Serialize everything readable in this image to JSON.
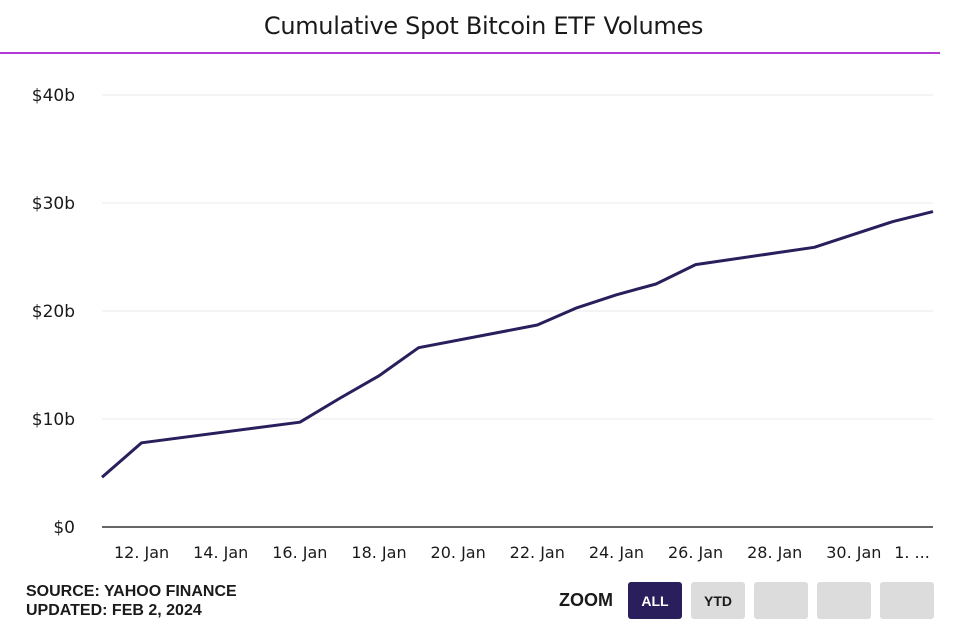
{
  "title": "Cumulative Spot Bitcoin ETF Volumes",
  "footer": {
    "source": "SOURCE: YAHOO FINANCE",
    "updated": "UPDATED: FEB 2, 2024"
  },
  "zoom": {
    "label": "ZOOM",
    "buttons": [
      "ALL",
      "YTD",
      "",
      "",
      ""
    ],
    "active": "ALL"
  },
  "colors": {
    "line": "#2a1e5c",
    "accent": "#b23bd6",
    "grid": "#e8e8e8"
  },
  "chart_data": {
    "type": "line",
    "title": "Cumulative Spot Bitcoin ETF Volumes",
    "xlabel": "",
    "ylabel": "",
    "y_unit": "billion USD",
    "yticks": [
      0,
      10,
      20,
      30,
      40
    ],
    "ytick_labels": [
      "$0",
      "$10b",
      "$20b",
      "$30b",
      "$40b"
    ],
    "ylim": [
      0,
      40
    ],
    "xlim": [
      "2024-01-11",
      "2024-02-01"
    ],
    "xtick_labels": [
      "12. Jan",
      "14. Jan",
      "16. Jan",
      "18. Jan",
      "20. Jan",
      "22. Jan",
      "24. Jan",
      "26. Jan",
      "28. Jan",
      "30. Jan",
      "1. ..."
    ],
    "xtick_dates": [
      "2024-01-12",
      "2024-01-14",
      "2024-01-16",
      "2024-01-18",
      "2024-01-20",
      "2024-01-22",
      "2024-01-24",
      "2024-01-26",
      "2024-01-28",
      "2024-01-30",
      "2024-02-01"
    ],
    "grid": true,
    "legend": "none",
    "series": [
      {
        "x": [
          "2024-01-11",
          "2024-01-12",
          "2024-01-16",
          "2024-01-17",
          "2024-01-18",
          "2024-01-19",
          "2024-01-22",
          "2024-01-23",
          "2024-01-24",
          "2024-01-25",
          "2024-01-26",
          "2024-01-29",
          "2024-01-30",
          "2024-01-31",
          "2024-02-01"
        ],
        "values": [
          4.6,
          7.8,
          9.7,
          11.9,
          14.0,
          16.6,
          18.7,
          20.3,
          21.5,
          22.5,
          24.3,
          25.9,
          27.1,
          28.3,
          29.2
        ]
      }
    ]
  }
}
